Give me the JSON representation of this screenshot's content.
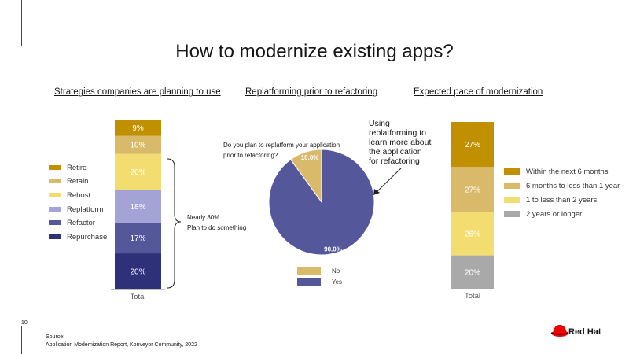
{
  "page": {
    "title": "How to modernize existing apps?",
    "page_number": "10",
    "source_label": "Source:",
    "source_text": "Application Modernization Report, Konveyor Community, 2022",
    "brand": "Red Hat"
  },
  "colors": {
    "accent": "#ee0000",
    "retire": "#c09000",
    "retain": "#d9b96a",
    "rehost": "#f4dd70",
    "replatform": "#a4a3d5",
    "refactor": "#55579b",
    "repurchase": "#2e3078",
    "no": "#d9b96a",
    "yes": "#55579b",
    "gray": "#a9a9a9"
  },
  "chart_data": [
    {
      "type": "bar",
      "stacked": true,
      "title": "Strategies companies are planning to use",
      "categories": [
        "Total"
      ],
      "series": [
        {
          "name": "Repurchase",
          "values": [
            20
          ]
        },
        {
          "name": "Refactor",
          "values": [
            17
          ]
        },
        {
          "name": "Replatform",
          "values": [
            18
          ]
        },
        {
          "name": "Rehost",
          "values": [
            20
          ]
        },
        {
          "name": "Retain",
          "values": [
            10
          ]
        },
        {
          "name": "Retire",
          "values": [
            9
          ]
        }
      ],
      "data_labels": [
        "20%",
        "17%",
        "18%",
        "20%",
        "10%",
        "9%"
      ],
      "legend": [
        "Retire",
        "Retain",
        "Rehost",
        "Replatform",
        "Refactor",
        "Repurchase"
      ],
      "legend_placement": "left",
      "annotation": [
        "Nearly 80%",
        "Plan to do something"
      ]
    },
    {
      "type": "pie",
      "title": "Replatforming prior to refactoring",
      "question": [
        "Do you plan to replatform your application",
        "prior to refactoring?"
      ],
      "slices": [
        {
          "name": "No",
          "value": 10.0,
          "label": "10.0%"
        },
        {
          "name": "Yes",
          "value": 90.0,
          "label": "90.0%"
        }
      ],
      "legend": [
        "No",
        "Yes"
      ],
      "legend_placement": "bottom",
      "annotation": [
        "Using",
        "replatforming to",
        "learn more about",
        "the application",
        "for refactoring"
      ]
    },
    {
      "type": "bar",
      "stacked": true,
      "title": "Expected pace of modernization",
      "categories": [
        "Total"
      ],
      "series": [
        {
          "name": "2 years or longer",
          "values": [
            20
          ]
        },
        {
          "name": "1 to less than 2 years",
          "values": [
            26
          ]
        },
        {
          "name": "6 months to less than 1 year",
          "values": [
            27
          ]
        },
        {
          "name": "Within the next 6 months",
          "values": [
            27
          ]
        }
      ],
      "data_labels": [
        "20%",
        "26%",
        "27%",
        "27%"
      ],
      "legend": [
        "Within the next 6 months",
        "6 months to less than 1 year",
        "1 to less than 2 years",
        "2 years or longer"
      ],
      "legend_placement": "right"
    }
  ]
}
